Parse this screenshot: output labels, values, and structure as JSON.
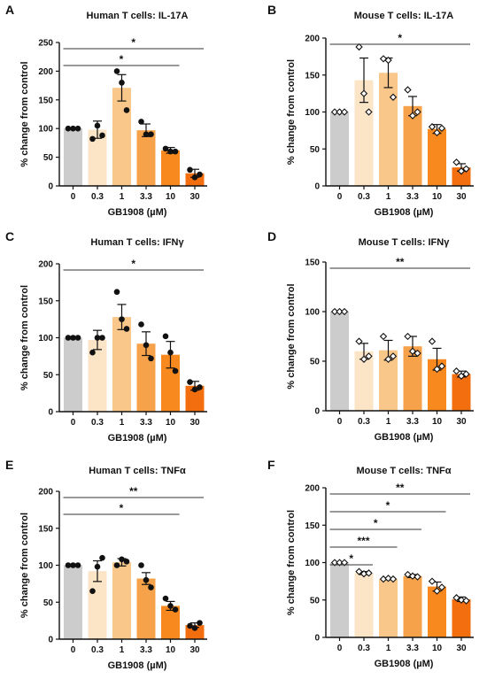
{
  "figure": {
    "colors": [
      "#cccccc",
      "#fce4c6",
      "#f9c789",
      "#f6a24a",
      "#f7891f",
      "#f36e0f"
    ],
    "significance_line_color": "#333333"
  },
  "chart_data": [
    {
      "panel": "A",
      "type": "bar",
      "title": "Human T cells: IL-17A",
      "xlabel": "GB1908 (µM)",
      "ylabel": "% change from control",
      "categories": [
        "0",
        "0.3",
        "1",
        "3.3",
        "10",
        "30"
      ],
      "values": [
        100,
        98,
        171,
        97,
        62,
        22
      ],
      "errors": [
        0,
        15,
        23,
        11,
        5,
        7
      ],
      "points": [
        [
          100,
          100,
          100
        ],
        [
          82,
          105,
          88
        ],
        [
          200,
          180,
          132
        ],
        [
          112,
          90,
          90
        ],
        [
          65,
          60,
          60
        ],
        [
          28,
          15,
          20
        ]
      ],
      "marker": "filled-circle",
      "ylim": [
        0,
        250
      ],
      "yticks": [
        0,
        50,
        100,
        150,
        200,
        250
      ],
      "significance": [
        {
          "from": 0,
          "to": 5,
          "label": "*"
        },
        {
          "from": 0,
          "to": 4,
          "label": "*"
        }
      ]
    },
    {
      "panel": "B",
      "type": "bar",
      "title": "Mouse T cells: IL-17A",
      "xlabel": "GB1908 (µM)",
      "ylabel": "% change from control",
      "categories": [
        "0",
        "0.3",
        "1",
        "3.3",
        "10",
        "30"
      ],
      "values": [
        100,
        143,
        153,
        108,
        77,
        25
      ],
      "errors": [
        0,
        30,
        20,
        13,
        6,
        5
      ],
      "points": [
        [
          100,
          100,
          100
        ],
        [
          188,
          125,
          100
        ],
        [
          172,
          170,
          120
        ],
        [
          130,
          95,
          100
        ],
        [
          80,
          72,
          78
        ],
        [
          32,
          20,
          23
        ]
      ],
      "marker": "open-diamond",
      "ylim": [
        0,
        200
      ],
      "yticks": [
        0,
        50,
        100,
        150,
        200
      ],
      "significance": [
        {
          "from": 0,
          "to": 5,
          "label": "*"
        }
      ]
    },
    {
      "panel": "C",
      "type": "bar",
      "title": "Human T cells: IFNγ",
      "xlabel": "GB1908 (µM)",
      "ylabel": "% change from control",
      "categories": [
        "0",
        "0.3",
        "1",
        "3.3",
        "10",
        "30"
      ],
      "values": [
        100,
        97,
        128,
        92,
        77,
        35
      ],
      "errors": [
        0,
        13,
        17,
        16,
        18,
        6
      ],
      "points": [
        [
          100,
          100,
          100
        ],
        [
          80,
          100,
          100
        ],
        [
          162,
          125,
          112
        ],
        [
          118,
          90,
          72
        ],
        [
          102,
          80,
          55
        ],
        [
          40,
          30,
          33
        ]
      ],
      "marker": "filled-circle",
      "ylim": [
        0,
        200
      ],
      "yticks": [
        0,
        50,
        100,
        150,
        200
      ],
      "significance": [
        {
          "from": 0,
          "to": 5,
          "label": "*"
        }
      ]
    },
    {
      "panel": "D",
      "type": "bar",
      "title": "Mouse T cells: IFNγ",
      "xlabel": "GB1908 (µM)",
      "ylabel": "% change from control",
      "categories": [
        "0",
        "0.3",
        "1",
        "3.3",
        "10",
        "30"
      ],
      "values": [
        100,
        60,
        61,
        65,
        52,
        37
      ],
      "errors": [
        0,
        8,
        10,
        10,
        11,
        3
      ],
      "points": [
        [
          100,
          100,
          100
        ],
        [
          70,
          52,
          55
        ],
        [
          75,
          52,
          55
        ],
        [
          75,
          60,
          58
        ],
        [
          70,
          42,
          45
        ],
        [
          40,
          35,
          37
        ]
      ],
      "marker": "open-diamond",
      "ylim": [
        0,
        150
      ],
      "yticks": [
        0,
        50,
        100,
        150
      ],
      "significance": [
        {
          "from": 0,
          "to": 5,
          "label": "**"
        }
      ]
    },
    {
      "panel": "E",
      "type": "bar",
      "title": "Human T cells: TNFα",
      "xlabel": "GB1908 (µM)",
      "ylabel": "% change from control",
      "categories": [
        "0",
        "0.3",
        "1",
        "3.3",
        "10",
        "30"
      ],
      "values": [
        100,
        92,
        104,
        82,
        45,
        19
      ],
      "errors": [
        0,
        14,
        5,
        8,
        6,
        3
      ],
      "points": [
        [
          100,
          100,
          100
        ],
        [
          65,
          98,
          110
        ],
        [
          100,
          108,
          105
        ],
        [
          100,
          80,
          70
        ],
        [
          55,
          45,
          40
        ],
        [
          18,
          15,
          22
        ]
      ],
      "marker": "filled-circle",
      "ylim": [
        0,
        200
      ],
      "yticks": [
        0,
        50,
        100,
        150,
        200
      ],
      "significance": [
        {
          "from": 0,
          "to": 5,
          "label": "**"
        },
        {
          "from": 0,
          "to": 4,
          "label": "*"
        }
      ]
    },
    {
      "panel": "F",
      "type": "bar",
      "title": "Mouse T cells: TNFα",
      "xlabel": "GB1908 (µM)",
      "ylabel": "% change from control",
      "categories": [
        "0",
        "0.3",
        "1",
        "3.3",
        "10",
        "30"
      ],
      "values": [
        100,
        86,
        78,
        82,
        68,
        51
      ],
      "errors": [
        0,
        2,
        1,
        2,
        6,
        3
      ],
      "points": [
        [
          100,
          100,
          100
        ],
        [
          88,
          85,
          86
        ],
        [
          78,
          79,
          78
        ],
        [
          84,
          82,
          81
        ],
        [
          75,
          62,
          67
        ],
        [
          53,
          50,
          49
        ]
      ],
      "marker": "open-diamond",
      "ylim": [
        0,
        200
      ],
      "yticks": [
        0,
        50,
        100,
        150,
        200
      ],
      "significance": [
        {
          "from": 0,
          "to": 5,
          "label": "**"
        },
        {
          "from": 0,
          "to": 4,
          "label": "*"
        },
        {
          "from": 0,
          "to": 3,
          "label": "*"
        },
        {
          "from": 0,
          "to": 2,
          "label": "***"
        },
        {
          "from": 0,
          "to": 1,
          "label": "*"
        }
      ]
    }
  ]
}
